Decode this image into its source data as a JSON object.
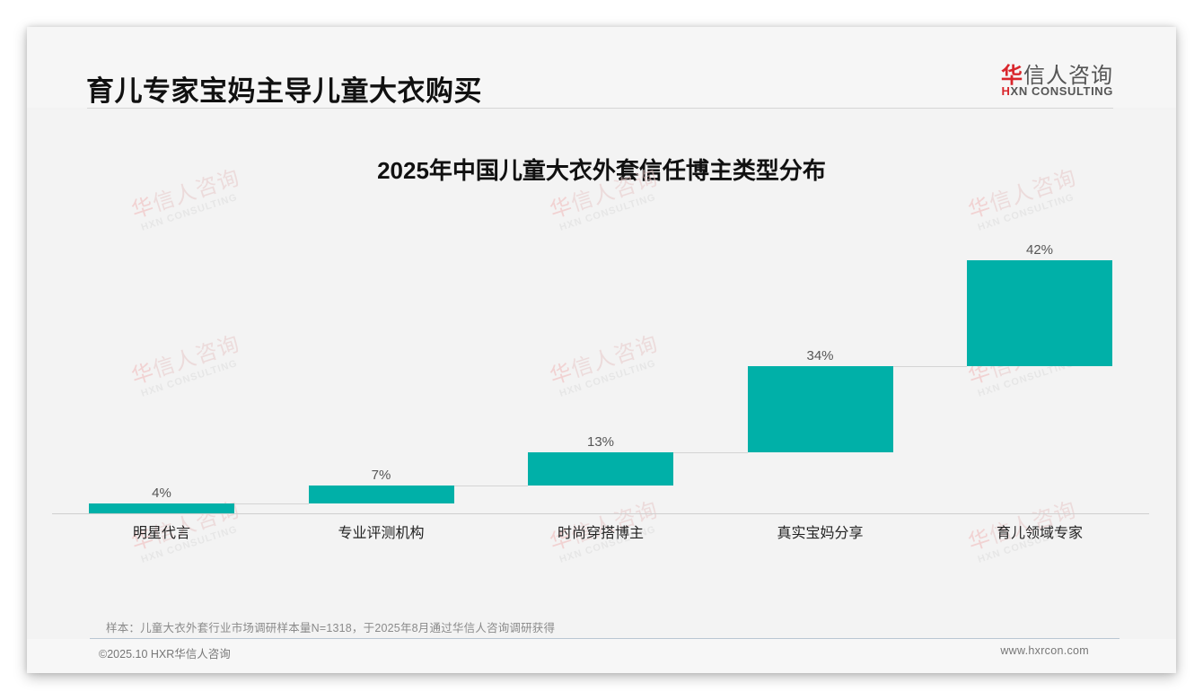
{
  "header": {
    "title": "育儿专家宝妈主导儿童大衣购买",
    "logo": {
      "cn_accent": "华",
      "cn_rest": "信人咨询",
      "en_accent": "H",
      "en_rest": "XN CONSULTING"
    }
  },
  "watermark": {
    "cn_accent": "华",
    "cn_rest": "信人咨询",
    "en": "HXN CONSULTING"
  },
  "chart_data": {
    "type": "bar",
    "subtype": "waterfall",
    "title": "2025年中国儿童大衣外套信任博主类型分布",
    "categories": [
      "明星代言",
      "专业评测机构",
      "时尚穿搭博主",
      "真实宝妈分享",
      "育儿领域专家"
    ],
    "values": [
      4,
      7,
      13,
      34,
      42
    ],
    "value_labels": [
      "4%",
      "7%",
      "13%",
      "34%",
      "42%"
    ],
    "unit": "%",
    "xlabel": "",
    "ylabel": "",
    "ylim": [
      0,
      100
    ],
    "grid": false,
    "legend": null,
    "bar_color": "#00b0a8"
  },
  "footer": {
    "sample_note": "样本：儿童大衣外套行业市场调研样本量N=1318，于2025年8月通过华信人咨询调研获得",
    "copyright": "©2025.10 HXR华信人咨询",
    "website": "www.hxrcon.com"
  }
}
